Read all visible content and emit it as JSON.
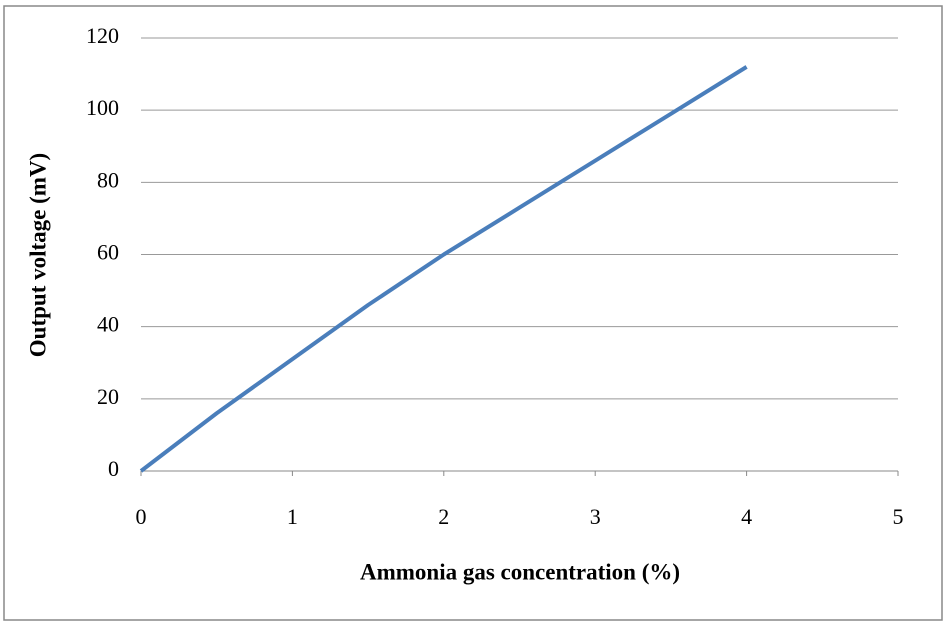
{
  "chart_data": {
    "type": "line",
    "x_label": "Ammonia gas concentration (%)",
    "y_label": "Output voltage (mV)",
    "x": [
      0,
      0.5,
      1,
      1.5,
      2,
      2.5,
      3,
      3.5,
      4
    ],
    "series": [
      {
        "color": "#4a7ebb",
        "values": [
          0,
          16,
          31,
          46,
          60,
          73,
          86,
          99,
          112
        ]
      }
    ],
    "xlim": [
      0,
      5
    ],
    "xticks": [
      0,
      1,
      2,
      3,
      4,
      5
    ],
    "ylim": [
      0,
      120
    ],
    "yticks": [
      0,
      20,
      40,
      60,
      80,
      100,
      120
    ],
    "grid": true
  }
}
